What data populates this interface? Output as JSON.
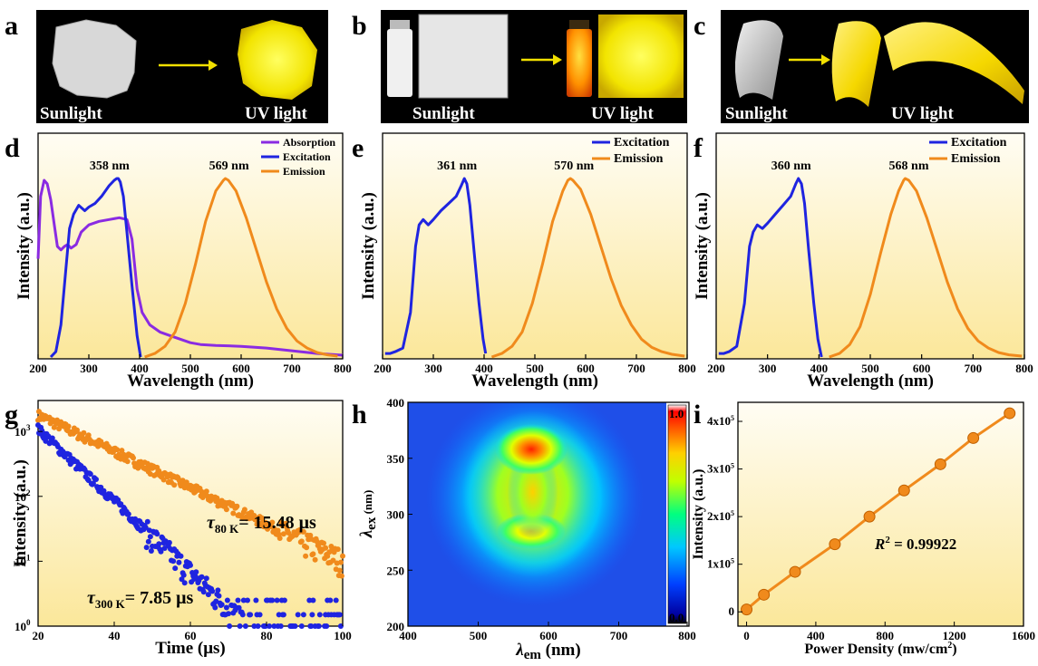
{
  "panel_labels": {
    "a": "a",
    "b": "b",
    "c": "c",
    "d": "d",
    "e": "e",
    "f": "f",
    "g": "g",
    "h": "h",
    "i": "i"
  },
  "photos": {
    "a": {
      "left": "Sunlight",
      "right": "UV light"
    },
    "b": {
      "left": "Sunlight",
      "right": "UV light"
    },
    "c": {
      "left": "Sunlight",
      "right": "UV light"
    }
  },
  "colors": {
    "absorption": "#8a2be2",
    "excitation": "#1f24e0",
    "emission": "#f08a1c",
    "bg_top": "#fffcf0",
    "bg_bottom": "#fbe79c"
  },
  "chart_data": [
    {
      "panel": "d",
      "type": "line",
      "xlabel": "Wavelength (nm)",
      "ylabel": "Intensity (a.u.)",
      "xlim": [
        200,
        800
      ],
      "xticks": [
        "200",
        "300",
        "400",
        "500",
        "600",
        "700",
        "800"
      ],
      "series": [
        {
          "name": "Absorption",
          "color": "#8a2be2",
          "x": [
            200,
            205,
            212,
            218,
            225,
            232,
            238,
            245,
            252,
            258,
            265,
            275,
            285,
            300,
            320,
            340,
            360,
            375,
            385,
            395,
            405,
            420,
            440,
            460,
            480,
            500,
            520,
            550,
            600,
            650,
            700,
            750,
            800
          ],
          "y": [
            0.55,
            0.9,
            0.99,
            0.97,
            0.88,
            0.74,
            0.62,
            0.6,
            0.62,
            0.63,
            0.61,
            0.63,
            0.7,
            0.74,
            0.76,
            0.77,
            0.78,
            0.77,
            0.66,
            0.38,
            0.25,
            0.18,
            0.14,
            0.12,
            0.1,
            0.08,
            0.07,
            0.065,
            0.06,
            0.05,
            0.035,
            0.02,
            0.01
          ]
        },
        {
          "name": "Excitation",
          "color": "#1f24e0",
          "x": [
            225,
            235,
            245,
            255,
            262,
            270,
            280,
            292,
            300,
            312,
            325,
            340,
            350,
            355,
            358,
            362,
            368,
            375,
            385,
            395,
            402
          ],
          "y": [
            0.0,
            0.03,
            0.18,
            0.5,
            0.72,
            0.8,
            0.85,
            0.82,
            0.84,
            0.86,
            0.9,
            0.96,
            0.99,
            1.0,
            1.0,
            0.98,
            0.9,
            0.7,
            0.4,
            0.12,
            0.0
          ]
        },
        {
          "name": "Emission",
          "color": "#f08a1c",
          "x": [
            410,
            430,
            450,
            470,
            490,
            510,
            530,
            550,
            565,
            569,
            575,
            590,
            610,
            630,
            650,
            670,
            690,
            710,
            730,
            750,
            770,
            790
          ],
          "y": [
            0.0,
            0.02,
            0.06,
            0.14,
            0.3,
            0.52,
            0.76,
            0.93,
            0.99,
            1.0,
            0.99,
            0.93,
            0.78,
            0.6,
            0.42,
            0.27,
            0.16,
            0.09,
            0.05,
            0.025,
            0.012,
            0.005
          ]
        }
      ],
      "annotations": [
        "358 nm",
        "569 nm"
      ]
    },
    {
      "panel": "e",
      "type": "line",
      "xlabel": "Wavelength (nm)",
      "ylabel": "Intensity (a.u.)",
      "xlim": [
        200,
        800
      ],
      "xticks": [
        "200",
        "300",
        "400",
        "500",
        "600",
        "700",
        "800"
      ],
      "series": [
        {
          "name": "Excitation",
          "color": "#1f24e0",
          "x": [
            205,
            215,
            225,
            240,
            255,
            265,
            272,
            280,
            290,
            300,
            315,
            330,
            345,
            355,
            361,
            366,
            372,
            380,
            390,
            398,
            403
          ],
          "y": [
            0.02,
            0.02,
            0.03,
            0.05,
            0.25,
            0.62,
            0.74,
            0.77,
            0.74,
            0.77,
            0.82,
            0.86,
            0.9,
            0.96,
            1.0,
            0.97,
            0.85,
            0.6,
            0.3,
            0.1,
            0.02
          ]
        },
        {
          "name": "Emission",
          "color": "#f08a1c",
          "x": [
            415,
            435,
            455,
            475,
            495,
            515,
            535,
            555,
            565,
            570,
            575,
            590,
            610,
            630,
            650,
            670,
            690,
            710,
            730,
            750,
            770,
            795
          ],
          "y": [
            0.0,
            0.02,
            0.06,
            0.14,
            0.3,
            0.52,
            0.76,
            0.93,
            0.99,
            1.0,
            0.99,
            0.94,
            0.8,
            0.62,
            0.44,
            0.29,
            0.18,
            0.1,
            0.055,
            0.03,
            0.015,
            0.005
          ]
        }
      ],
      "annotations": [
        "361 nm",
        "570 nm"
      ]
    },
    {
      "panel": "f",
      "type": "line",
      "xlabel": "Wavelength (nm)",
      "ylabel": "Intensity (a.u.)",
      "xlim": [
        200,
        800
      ],
      "xticks": [
        "200",
        "300",
        "400",
        "500",
        "600",
        "700",
        "800"
      ],
      "series": [
        {
          "name": "Excitation",
          "color": "#1f24e0",
          "x": [
            205,
            215,
            225,
            240,
            255,
            265,
            272,
            280,
            290,
            300,
            315,
            330,
            345,
            355,
            360,
            366,
            372,
            380,
            390,
            398,
            405
          ],
          "y": [
            0.02,
            0.02,
            0.03,
            0.06,
            0.3,
            0.62,
            0.7,
            0.74,
            0.72,
            0.75,
            0.8,
            0.85,
            0.9,
            0.97,
            1.0,
            0.97,
            0.86,
            0.6,
            0.3,
            0.1,
            0.0
          ]
        },
        {
          "name": "Emission",
          "color": "#f08a1c",
          "x": [
            420,
            440,
            460,
            480,
            500,
            520,
            540,
            555,
            565,
            568,
            575,
            590,
            610,
            630,
            650,
            670,
            690,
            710,
            730,
            750,
            770,
            795
          ],
          "y": [
            0.0,
            0.02,
            0.07,
            0.17,
            0.35,
            0.58,
            0.8,
            0.93,
            0.99,
            1.0,
            0.99,
            0.93,
            0.78,
            0.6,
            0.42,
            0.27,
            0.16,
            0.09,
            0.05,
            0.025,
            0.012,
            0.005
          ]
        }
      ],
      "annotations": [
        "360 nm",
        "568 nm"
      ]
    },
    {
      "panel": "g",
      "type": "scatter",
      "xlabel": "Time (μs)",
      "ylabel": "Intensity (a.u.)",
      "yscale": "log",
      "xlim": [
        20,
        100
      ],
      "ylim": [
        1,
        3000
      ],
      "xticks": [
        "20",
        "40",
        "60",
        "80",
        "100"
      ],
      "yticks": [
        {
          "b": "10",
          "e": "0"
        },
        {
          "b": "10",
          "e": "1"
        },
        {
          "b": "10",
          "e": "2"
        },
        {
          "b": "10",
          "e": "3"
        }
      ],
      "series": [
        {
          "name": "80 K",
          "color": "#f08a1c",
          "tau_us": 15.48,
          "I0": 1800,
          "floor": 2
        },
        {
          "name": "300 K",
          "color": "#1f24e0",
          "tau_us": 7.85,
          "I0": 1100,
          "floor": 1
        }
      ],
      "annotations": [
        {
          "tau": "τ",
          "sub": "80 K",
          "value": "= 15.48 μs"
        },
        {
          "tau": "τ",
          "sub": "300 K",
          "value": "= 7.85 μs"
        }
      ]
    },
    {
      "panel": "h",
      "type": "heatmap",
      "xlabel_sym": "λ",
      "xlabel_sub": "em",
      "xlabel_unit": " (nm)",
      "ylabel_sym": "λ",
      "ylabel_sub": "ex",
      "ylabel_unit": " (nm)",
      "xlim": [
        400,
        800
      ],
      "ylim": [
        200,
        400
      ],
      "xticks": [
        "400",
        "500",
        "600",
        "700",
        "800"
      ],
      "yticks": [
        "200",
        "250",
        "300",
        "350",
        "400"
      ],
      "colorbar": {
        "min": "0.0",
        "max": "1.0"
      },
      "peaks": [
        {
          "x": 570,
          "y": 360,
          "v": 1.0
        },
        {
          "x": 570,
          "y": 285,
          "v": 0.85
        }
      ]
    },
    {
      "panel": "i",
      "type": "line",
      "xlabel": "Power Density (mw/cm",
      "xlabel_sup": "2",
      "xlabel_end": ")",
      "ylabel": "Intensity (a.u.)",
      "xlim": [
        -50,
        1600
      ],
      "ylim": [
        -30000,
        440000
      ],
      "xticks": [
        "0",
        "400",
        "800",
        "1200",
        "1600"
      ],
      "yticks": [
        {
          "text": "0",
          "v": 0
        },
        {
          "text": "1x10",
          "sup": "5",
          "v": 100000
        },
        {
          "text": "2x10",
          "sup": "5",
          "v": 200000
        },
        {
          "text": "3x10",
          "sup": "5",
          "v": 300000
        },
        {
          "text": "4x10",
          "sup": "5",
          "v": 400000
        }
      ],
      "series": [
        {
          "name": "Intensity",
          "color": "#f08a1c",
          "x": [
            0,
            100,
            280,
            510,
            710,
            910,
            1120,
            1310,
            1520
          ],
          "y": [
            5000,
            36000,
            84000,
            142000,
            200000,
            255000,
            310000,
            365000,
            417000
          ]
        }
      ],
      "r2": {
        "r": "R",
        "sup": "2",
        "value": " = 0.99922"
      }
    }
  ]
}
